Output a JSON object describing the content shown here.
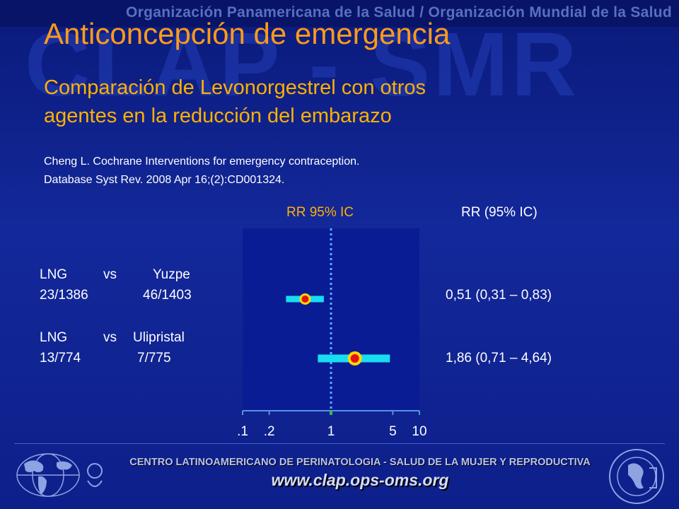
{
  "header": {
    "banner": "Organización Panamericana de la Salud / Organización Mundial de la Salud",
    "watermark": "CLAP - SMR"
  },
  "slide": {
    "title": "Anticoncepción de emergencia",
    "subtitle_line1": "Comparación de Levonorgestrel con otros",
    "subtitle_line2": "agentes en la reducción del embarazo",
    "citation_line1": "Cheng L. Cochrane Interventions for emergency contraception.",
    "citation_line2": "Database Syst Rev. 2008 Apr 16;(2):CD001324."
  },
  "chart_data": {
    "type": "forest",
    "title": "RR 95% IC",
    "right_column_header": "RR (95% IC)",
    "scale": "log",
    "xlim": [
      0.1,
      10
    ],
    "reference_line": 1,
    "tick_labels": [
      ".1",
      ".2",
      "1",
      "5",
      "10"
    ],
    "tick_values": [
      0.1,
      0.2,
      1,
      5,
      10
    ],
    "colors": {
      "panel": "#0a1c94",
      "ci_bar": "#18dcef",
      "point_fill": "#e01515",
      "point_ring": "#ffd600",
      "reference_line": "#5ab0ff"
    },
    "rows": [
      {
        "label_line1": [
          "LNG",
          "vs",
          "Yuzpe"
        ],
        "label_line2": [
          "23/1386",
          "46/1403"
        ],
        "rr": 0.51,
        "ci_low": 0.31,
        "ci_high": 0.83,
        "rr_text": "0,51 (0,31 – 0,83)"
      },
      {
        "label_line1": [
          "LNG",
          "vs",
          "Ulipristal"
        ],
        "label_line2": [
          "13/774",
          "7/775"
        ],
        "rr": 1.86,
        "ci_low": 0.71,
        "ci_high": 4.64,
        "rr_text": "1,86 (0,71 – 4,64)"
      }
    ]
  },
  "footer": {
    "center_text": "CENTRO LATINOAMERICANO DE PERINATOLOGIA - SALUD DE LA MUJER Y REPRODUCTIVA",
    "url": "www.clap.ops-oms.org",
    "seal_text": "Organización Panamericana de la Salud"
  }
}
